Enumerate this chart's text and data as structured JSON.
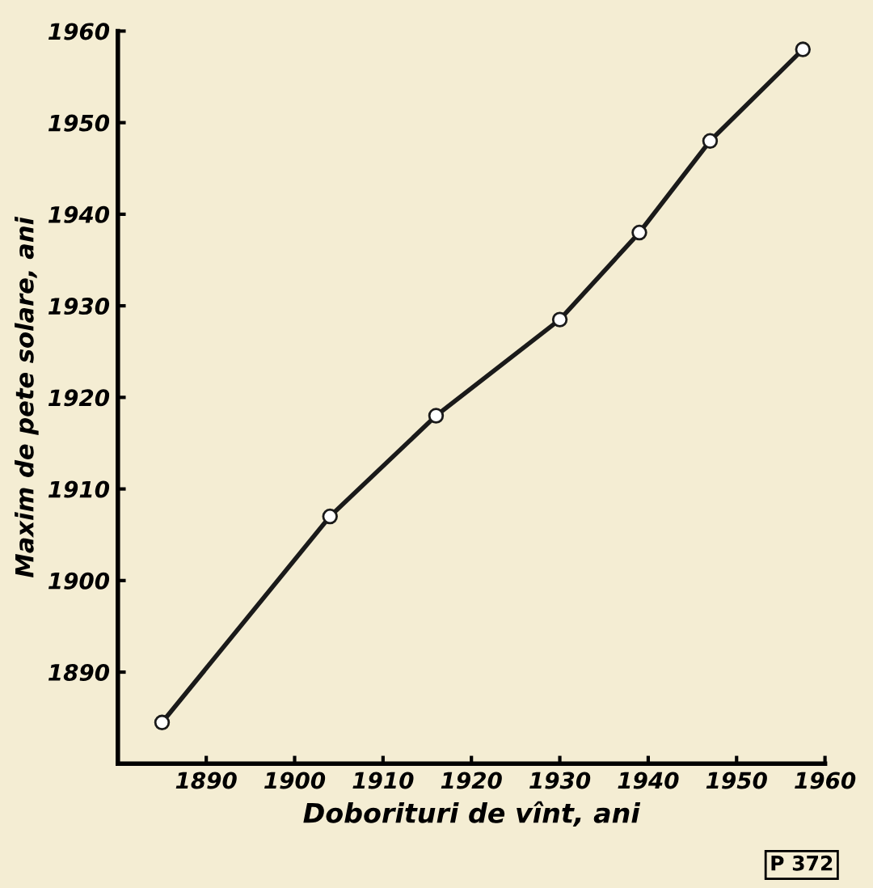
{
  "chart_data": {
    "type": "line",
    "xlabel": "Doborituri de vînt, ani",
    "ylabel": "Maxim de pete solare, ani",
    "x": [
      1885,
      1904,
      1916,
      1930,
      1939,
      1947,
      1957.5
    ],
    "series": [
      {
        "color": "#1a1a1a",
        "values": [
          1884.5,
          1907,
          1918,
          1928.5,
          1938,
          1948,
          1958
        ]
      }
    ],
    "xlim": [
      1880,
      1960
    ],
    "xticks": [
      1890,
      1900,
      1910,
      1920,
      1930,
      1940,
      1950,
      1960
    ],
    "ylim": [
      1880,
      1960
    ],
    "yticks": [
      1890,
      1900,
      1910,
      1920,
      1930,
      1940,
      1950,
      1960
    ],
    "marker": "circle",
    "line_style": "solid",
    "grid": false,
    "legend": false,
    "annotations": [
      "P 372"
    ]
  }
}
